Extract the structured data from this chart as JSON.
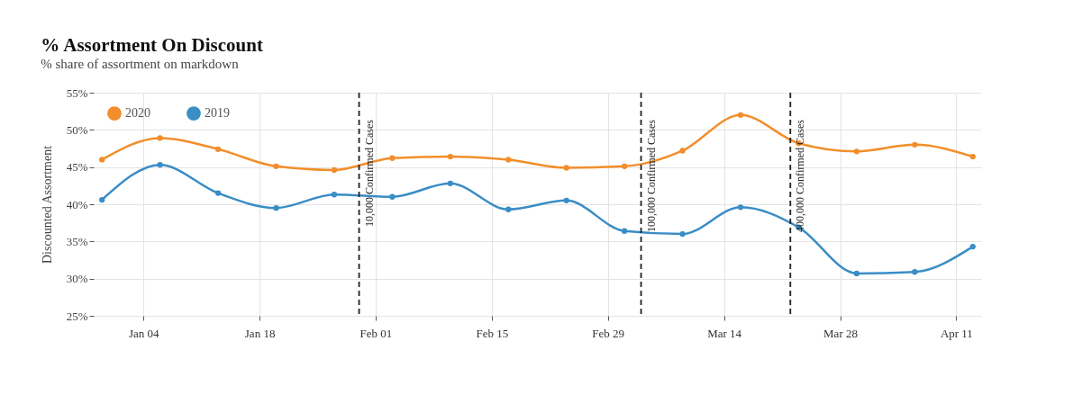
{
  "chart_data": {
    "type": "line",
    "title": "% Assortment On Discount",
    "subtitle": "% share of assortment on markdown",
    "ylabel": "Discounted Assortment",
    "x": [
      "2019-12-30",
      "2020-01-06",
      "2020-01-13",
      "2020-01-20",
      "2020-01-27",
      "2020-02-03",
      "2020-02-10",
      "2020-02-17",
      "2020-02-24",
      "2020-03-02",
      "2020-03-09",
      "2020-03-16",
      "2020-03-23",
      "2020-03-30",
      "2020-04-06",
      "2020-04-13"
    ],
    "series": [
      {
        "name": "2020",
        "color": "#f28e2b",
        "values": [
          46.0,
          48.9,
          47.4,
          45.1,
          44.6,
          46.2,
          46.4,
          46.0,
          44.9,
          45.1,
          47.2,
          52.0,
          48.2,
          47.1,
          48.0,
          46.4
        ]
      },
      {
        "name": "2019",
        "color": "#3a8dc5",
        "values": [
          40.6,
          45.3,
          41.5,
          39.5,
          41.3,
          41.0,
          42.8,
          39.3,
          40.5,
          36.4,
          36.0,
          39.6,
          36.9,
          30.7,
          30.9,
          34.3
        ]
      }
    ],
    "xlim": [
      "2019-12-29",
      "2020-04-14"
    ],
    "xticks": [
      {
        "value": "2020-01-04",
        "label": "Jan 04"
      },
      {
        "value": "2020-01-18",
        "label": "Jan 18"
      },
      {
        "value": "2020-02-01",
        "label": "Feb 01"
      },
      {
        "value": "2020-02-15",
        "label": "Feb 15"
      },
      {
        "value": "2020-02-29",
        "label": "Feb 29"
      },
      {
        "value": "2020-03-14",
        "label": "Mar 14"
      },
      {
        "value": "2020-03-28",
        "label": "Mar 28"
      },
      {
        "value": "2020-04-11",
        "label": "Apr 11"
      }
    ],
    "ylim": [
      25,
      55
    ],
    "yticks": [
      {
        "value": 25,
        "label": "25%"
      },
      {
        "value": 30,
        "label": "30%"
      },
      {
        "value": 35,
        "label": "35%"
      },
      {
        "value": 40,
        "label": "40%"
      },
      {
        "value": 45,
        "label": "45%"
      },
      {
        "value": 50,
        "label": "50%"
      },
      {
        "value": 55,
        "label": "55%"
      }
    ],
    "ref_lines": [
      {
        "axis": "x",
        "value": "2020-01-30",
        "label": "10,000 Confirmed Cases",
        "line_style": "dashed",
        "color": "#222222"
      },
      {
        "axis": "x",
        "value": "2020-03-04",
        "label": "100,000 Confirmed Cases",
        "line_style": "dashed",
        "color": "#222222"
      },
      {
        "axis": "x",
        "value": "2020-03-22",
        "label": "400,000 Confirmed Cases",
        "line_style": "dashed",
        "color": "#222222"
      }
    ],
    "grid": true,
    "legend": "top left",
    "marker": "circle",
    "line_style": "solid"
  }
}
